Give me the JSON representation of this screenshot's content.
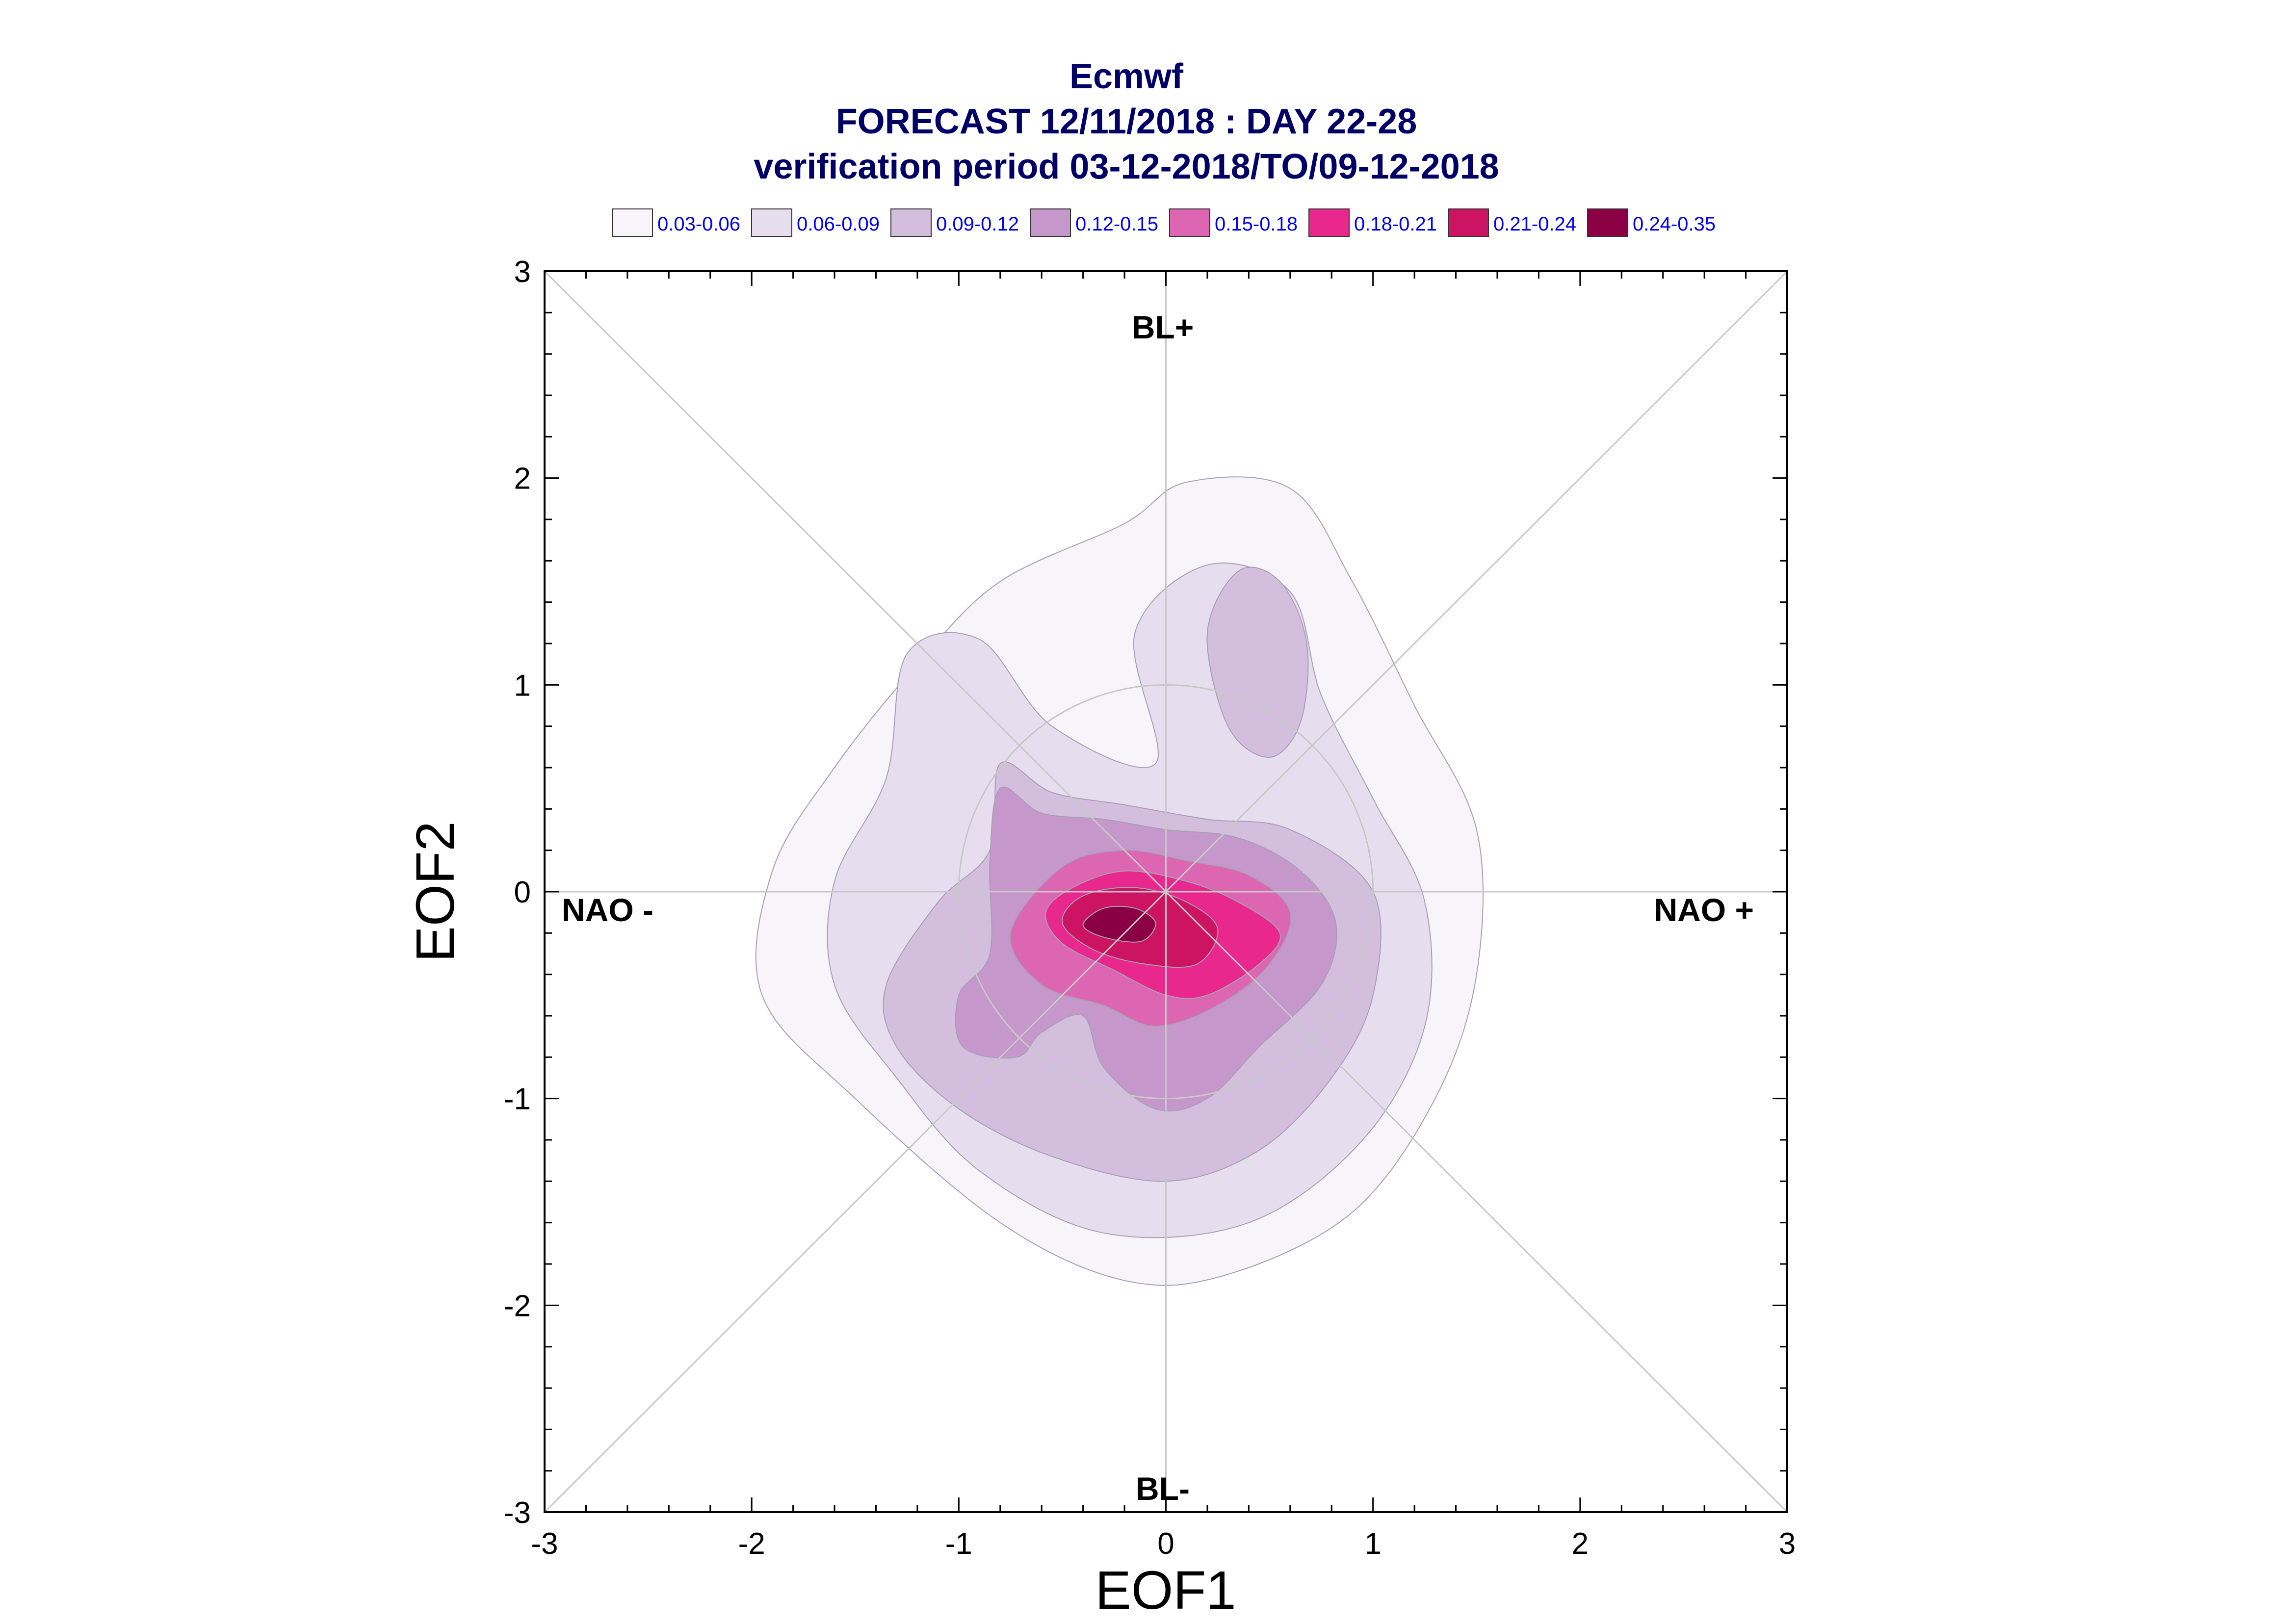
{
  "chart_data": {
    "type": "contour",
    "title_lines": [
      "Ecmwf",
      "FORECAST 12/11/2018 : DAY 22-28",
      "verification period 03-12-2018/TO/09-12-2018"
    ],
    "xlabel": "EOF1",
    "ylabel": "EOF2",
    "xlim": [
      -3,
      3
    ],
    "ylim": [
      -3,
      3
    ],
    "xticks": [
      -3,
      -2,
      -1,
      0,
      1,
      2,
      3
    ],
    "yticks": [
      -3,
      -2,
      -1,
      0,
      1,
      2,
      3
    ],
    "x_tick_labels": [
      "-3",
      "-2",
      "-1",
      "0",
      "1",
      "2",
      "3"
    ],
    "y_tick_labels": [
      "-3",
      "-2",
      "-1",
      "0",
      "1",
      "2",
      "3"
    ],
    "legend": {
      "placement": "top",
      "entries": [
        {
          "label": "0.03-0.06",
          "color": "#f7f5fa"
        },
        {
          "label": "0.06-0.09",
          "color": "#e6deee"
        },
        {
          "label": "0.09-0.12",
          "color": "#d4bede"
        },
        {
          "label": "0.12-0.15",
          "color": "#c697cb"
        },
        {
          "label": "0.15-0.18",
          "color": "#dd66b2"
        },
        {
          "label": "0.18-0.21",
          "color": "#e8288c"
        },
        {
          "label": "0.21-0.24",
          "color": "#cc1463"
        },
        {
          "label": "0.24-0.35",
          "color": "#8b0044"
        }
      ]
    },
    "regime_labels": {
      "top": "BL+",
      "bottom": "BL-",
      "left": "NAO -",
      "right": "NAO +"
    },
    "reference_circle_radius": 1.0,
    "contour_levels": [
      {
        "min": 0.03,
        "max": 0.06,
        "color": "#f7f5fa",
        "points": [
          [
            -0.8,
            1.5
          ],
          [
            -0.2,
            1.78
          ],
          [
            0.1,
            1.98
          ],
          [
            0.6,
            1.95
          ],
          [
            0.9,
            1.5
          ],
          [
            1.2,
            0.9
          ],
          [
            1.5,
            0.3
          ],
          [
            1.5,
            -0.4
          ],
          [
            1.3,
            -1.0
          ],
          [
            0.9,
            -1.55
          ],
          [
            0.3,
            -1.85
          ],
          [
            -0.2,
            -1.88
          ],
          [
            -0.8,
            -1.6
          ],
          [
            -1.5,
            -1.0
          ],
          [
            -1.95,
            -0.5
          ],
          [
            -1.9,
            0.1
          ],
          [
            -1.6,
            0.6
          ],
          [
            -1.2,
            1.1
          ]
        ]
      },
      {
        "min": 0.06,
        "max": 0.09,
        "color": "#e6deee",
        "points": [
          [
            -1.25,
            1.15
          ],
          [
            -0.9,
            1.22
          ],
          [
            -0.55,
            0.8
          ],
          [
            -0.05,
            0.62
          ],
          [
            -0.15,
            1.25
          ],
          [
            0.2,
            1.58
          ],
          [
            0.6,
            1.45
          ],
          [
            0.75,
            0.95
          ],
          [
            1.0,
            0.45
          ],
          [
            1.25,
            -0.05
          ],
          [
            1.25,
            -0.65
          ],
          [
            0.95,
            -1.2
          ],
          [
            0.4,
            -1.6
          ],
          [
            -0.3,
            -1.65
          ],
          [
            -0.9,
            -1.35
          ],
          [
            -1.3,
            -0.9
          ],
          [
            -1.6,
            -0.45
          ],
          [
            -1.6,
            0.05
          ],
          [
            -1.35,
            0.55
          ]
        ]
      },
      {
        "min": 0.09,
        "max": 0.12,
        "color": "#d4bede",
        "points": [
          [
            -0.8,
            0.62
          ],
          [
            -0.55,
            0.48
          ],
          [
            -0.2,
            0.42
          ],
          [
            0.2,
            0.35
          ],
          [
            0.6,
            0.3
          ],
          [
            1.0,
            0.0
          ],
          [
            1.0,
            -0.5
          ],
          [
            0.8,
            -0.9
          ],
          [
            0.45,
            -1.25
          ],
          [
            0.0,
            -1.4
          ],
          [
            -0.55,
            -1.28
          ],
          [
            -1.0,
            -1.05
          ],
          [
            -1.3,
            -0.75
          ],
          [
            -1.35,
            -0.45
          ],
          [
            -1.1,
            -0.05
          ],
          [
            -0.85,
            0.2
          ]
        ]
      },
      {
        "min": 0.09,
        "max": 0.12,
        "color": "#d4bede",
        "points": [
          [
            0.2,
            1.25
          ],
          [
            0.35,
            1.55
          ],
          [
            0.55,
            1.5
          ],
          [
            0.68,
            1.2
          ],
          [
            0.65,
            0.82
          ],
          [
            0.5,
            0.65
          ],
          [
            0.3,
            0.8
          ]
        ]
      },
      {
        "min": 0.12,
        "max": 0.15,
        "color": "#c697cb",
        "points": [
          [
            -0.8,
            0.5
          ],
          [
            -0.6,
            0.38
          ],
          [
            -0.3,
            0.35
          ],
          [
            0.0,
            0.3
          ],
          [
            0.35,
            0.26
          ],
          [
            0.65,
            0.1
          ],
          [
            0.82,
            -0.15
          ],
          [
            0.75,
            -0.45
          ],
          [
            0.45,
            -0.75
          ],
          [
            0.2,
            -1.0
          ],
          [
            -0.05,
            -1.05
          ],
          [
            -0.3,
            -0.85
          ],
          [
            -0.4,
            -0.6
          ],
          [
            -0.6,
            -0.68
          ],
          [
            -0.72,
            -0.8
          ],
          [
            -0.98,
            -0.75
          ],
          [
            -1.0,
            -0.5
          ],
          [
            -0.85,
            -0.3
          ],
          [
            -0.85,
            0.15
          ]
        ]
      },
      {
        "min": 0.15,
        "max": 0.18,
        "color": "#dd66b2",
        "points": [
          [
            -0.5,
            0.12
          ],
          [
            -0.2,
            0.2
          ],
          [
            0.1,
            0.15
          ],
          [
            0.4,
            0.08
          ],
          [
            0.6,
            -0.1
          ],
          [
            0.5,
            -0.35
          ],
          [
            0.25,
            -0.55
          ],
          [
            -0.05,
            -0.65
          ],
          [
            -0.3,
            -0.55
          ],
          [
            -0.6,
            -0.45
          ],
          [
            -0.75,
            -0.2
          ]
        ]
      },
      {
        "min": 0.18,
        "max": 0.21,
        "color": "#e8288c",
        "points": [
          [
            -0.45,
            0.02
          ],
          [
            -0.2,
            0.1
          ],
          [
            0.1,
            0.05
          ],
          [
            0.35,
            -0.05
          ],
          [
            0.55,
            -0.2
          ],
          [
            0.45,
            -0.35
          ],
          [
            0.2,
            -0.5
          ],
          [
            0.0,
            -0.5
          ],
          [
            -0.25,
            -0.38
          ],
          [
            -0.5,
            -0.25
          ],
          [
            -0.58,
            -0.1
          ]
        ]
      },
      {
        "min": 0.21,
        "max": 0.24,
        "color": "#cc1463",
        "points": [
          [
            -0.4,
            -0.02
          ],
          [
            -0.15,
            0.02
          ],
          [
            0.1,
            -0.05
          ],
          [
            0.25,
            -0.18
          ],
          [
            0.15,
            -0.35
          ],
          [
            -0.1,
            -0.35
          ],
          [
            -0.35,
            -0.28
          ],
          [
            -0.5,
            -0.15
          ]
        ]
      },
      {
        "min": 0.24,
        "max": 0.35,
        "color": "#8b0044",
        "points": [
          [
            -0.3,
            -0.08
          ],
          [
            -0.15,
            -0.08
          ],
          [
            -0.05,
            -0.15
          ],
          [
            -0.12,
            -0.24
          ],
          [
            -0.3,
            -0.22
          ],
          [
            -0.4,
            -0.16
          ]
        ]
      }
    ]
  }
}
